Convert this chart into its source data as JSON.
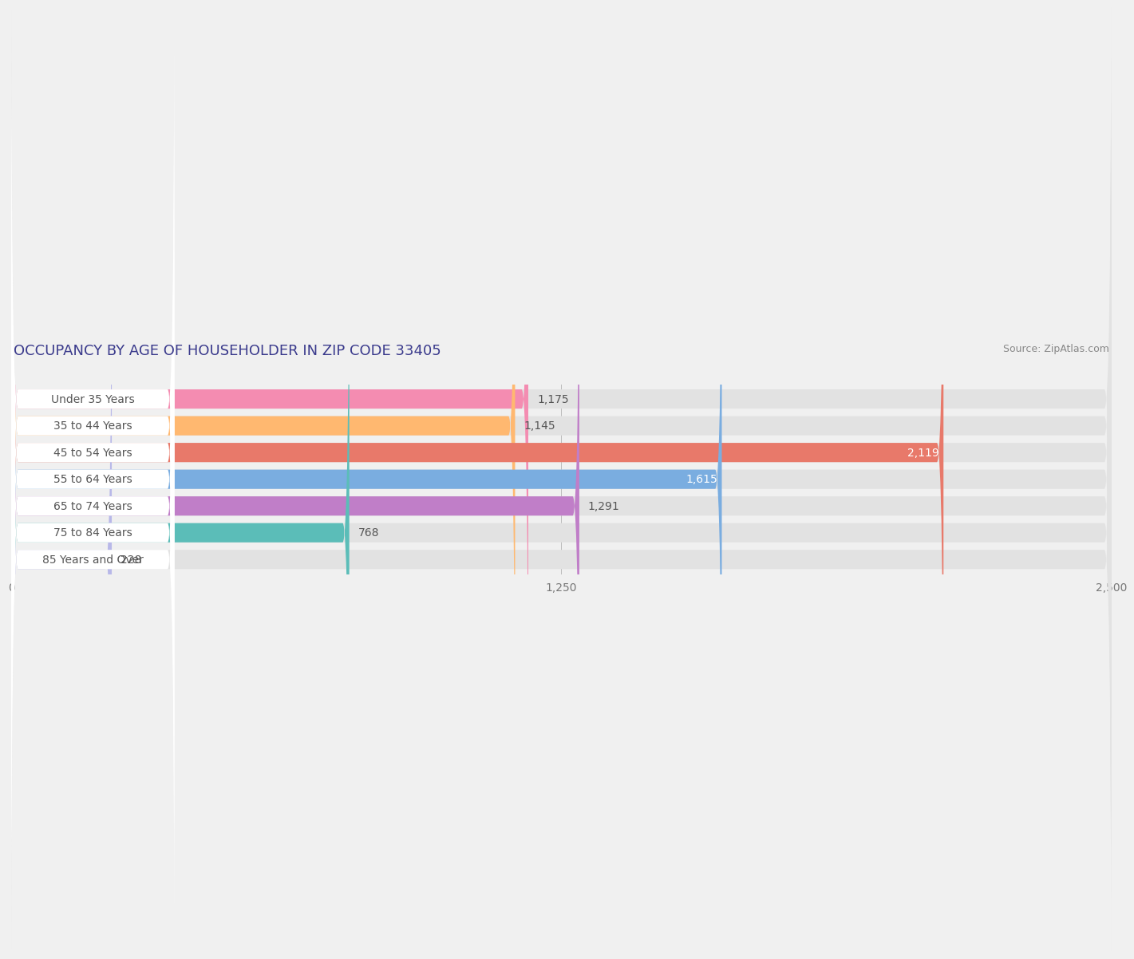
{
  "title": "OCCUPANCY BY AGE OF HOUSEHOLDER IN ZIP CODE 33405",
  "source": "Source: ZipAtlas.com",
  "categories": [
    "Under 35 Years",
    "35 to 44 Years",
    "45 to 54 Years",
    "55 to 64 Years",
    "65 to 74 Years",
    "75 to 84 Years",
    "85 Years and Over"
  ],
  "values": [
    1175,
    1145,
    2119,
    1615,
    1291,
    768,
    228
  ],
  "bar_colors": [
    "#f48cb1",
    "#ffb870",
    "#e8796a",
    "#7aade0",
    "#c07ec8",
    "#5bbdb8",
    "#b8b8e8"
  ],
  "value_inside": [
    false,
    false,
    true,
    true,
    false,
    false,
    false
  ],
  "xlim": [
    0,
    2500
  ],
  "xticks": [
    0,
    1250,
    2500
  ],
  "xtick_labels": [
    "0",
    "1,250",
    "2,500"
  ],
  "background_color": "#f0f0f0",
  "bar_bg_color": "#e2e2e2",
  "label_bg_color": "#ffffff",
  "title_fontsize": 13,
  "source_fontsize": 9,
  "cat_fontsize": 10,
  "val_fontsize": 10,
  "tick_fontsize": 10,
  "title_color": "#3a3a8c",
  "source_color": "#888888",
  "cat_text_color": "#555555",
  "val_outside_color": "#555555",
  "val_inside_color": "#ffffff"
}
